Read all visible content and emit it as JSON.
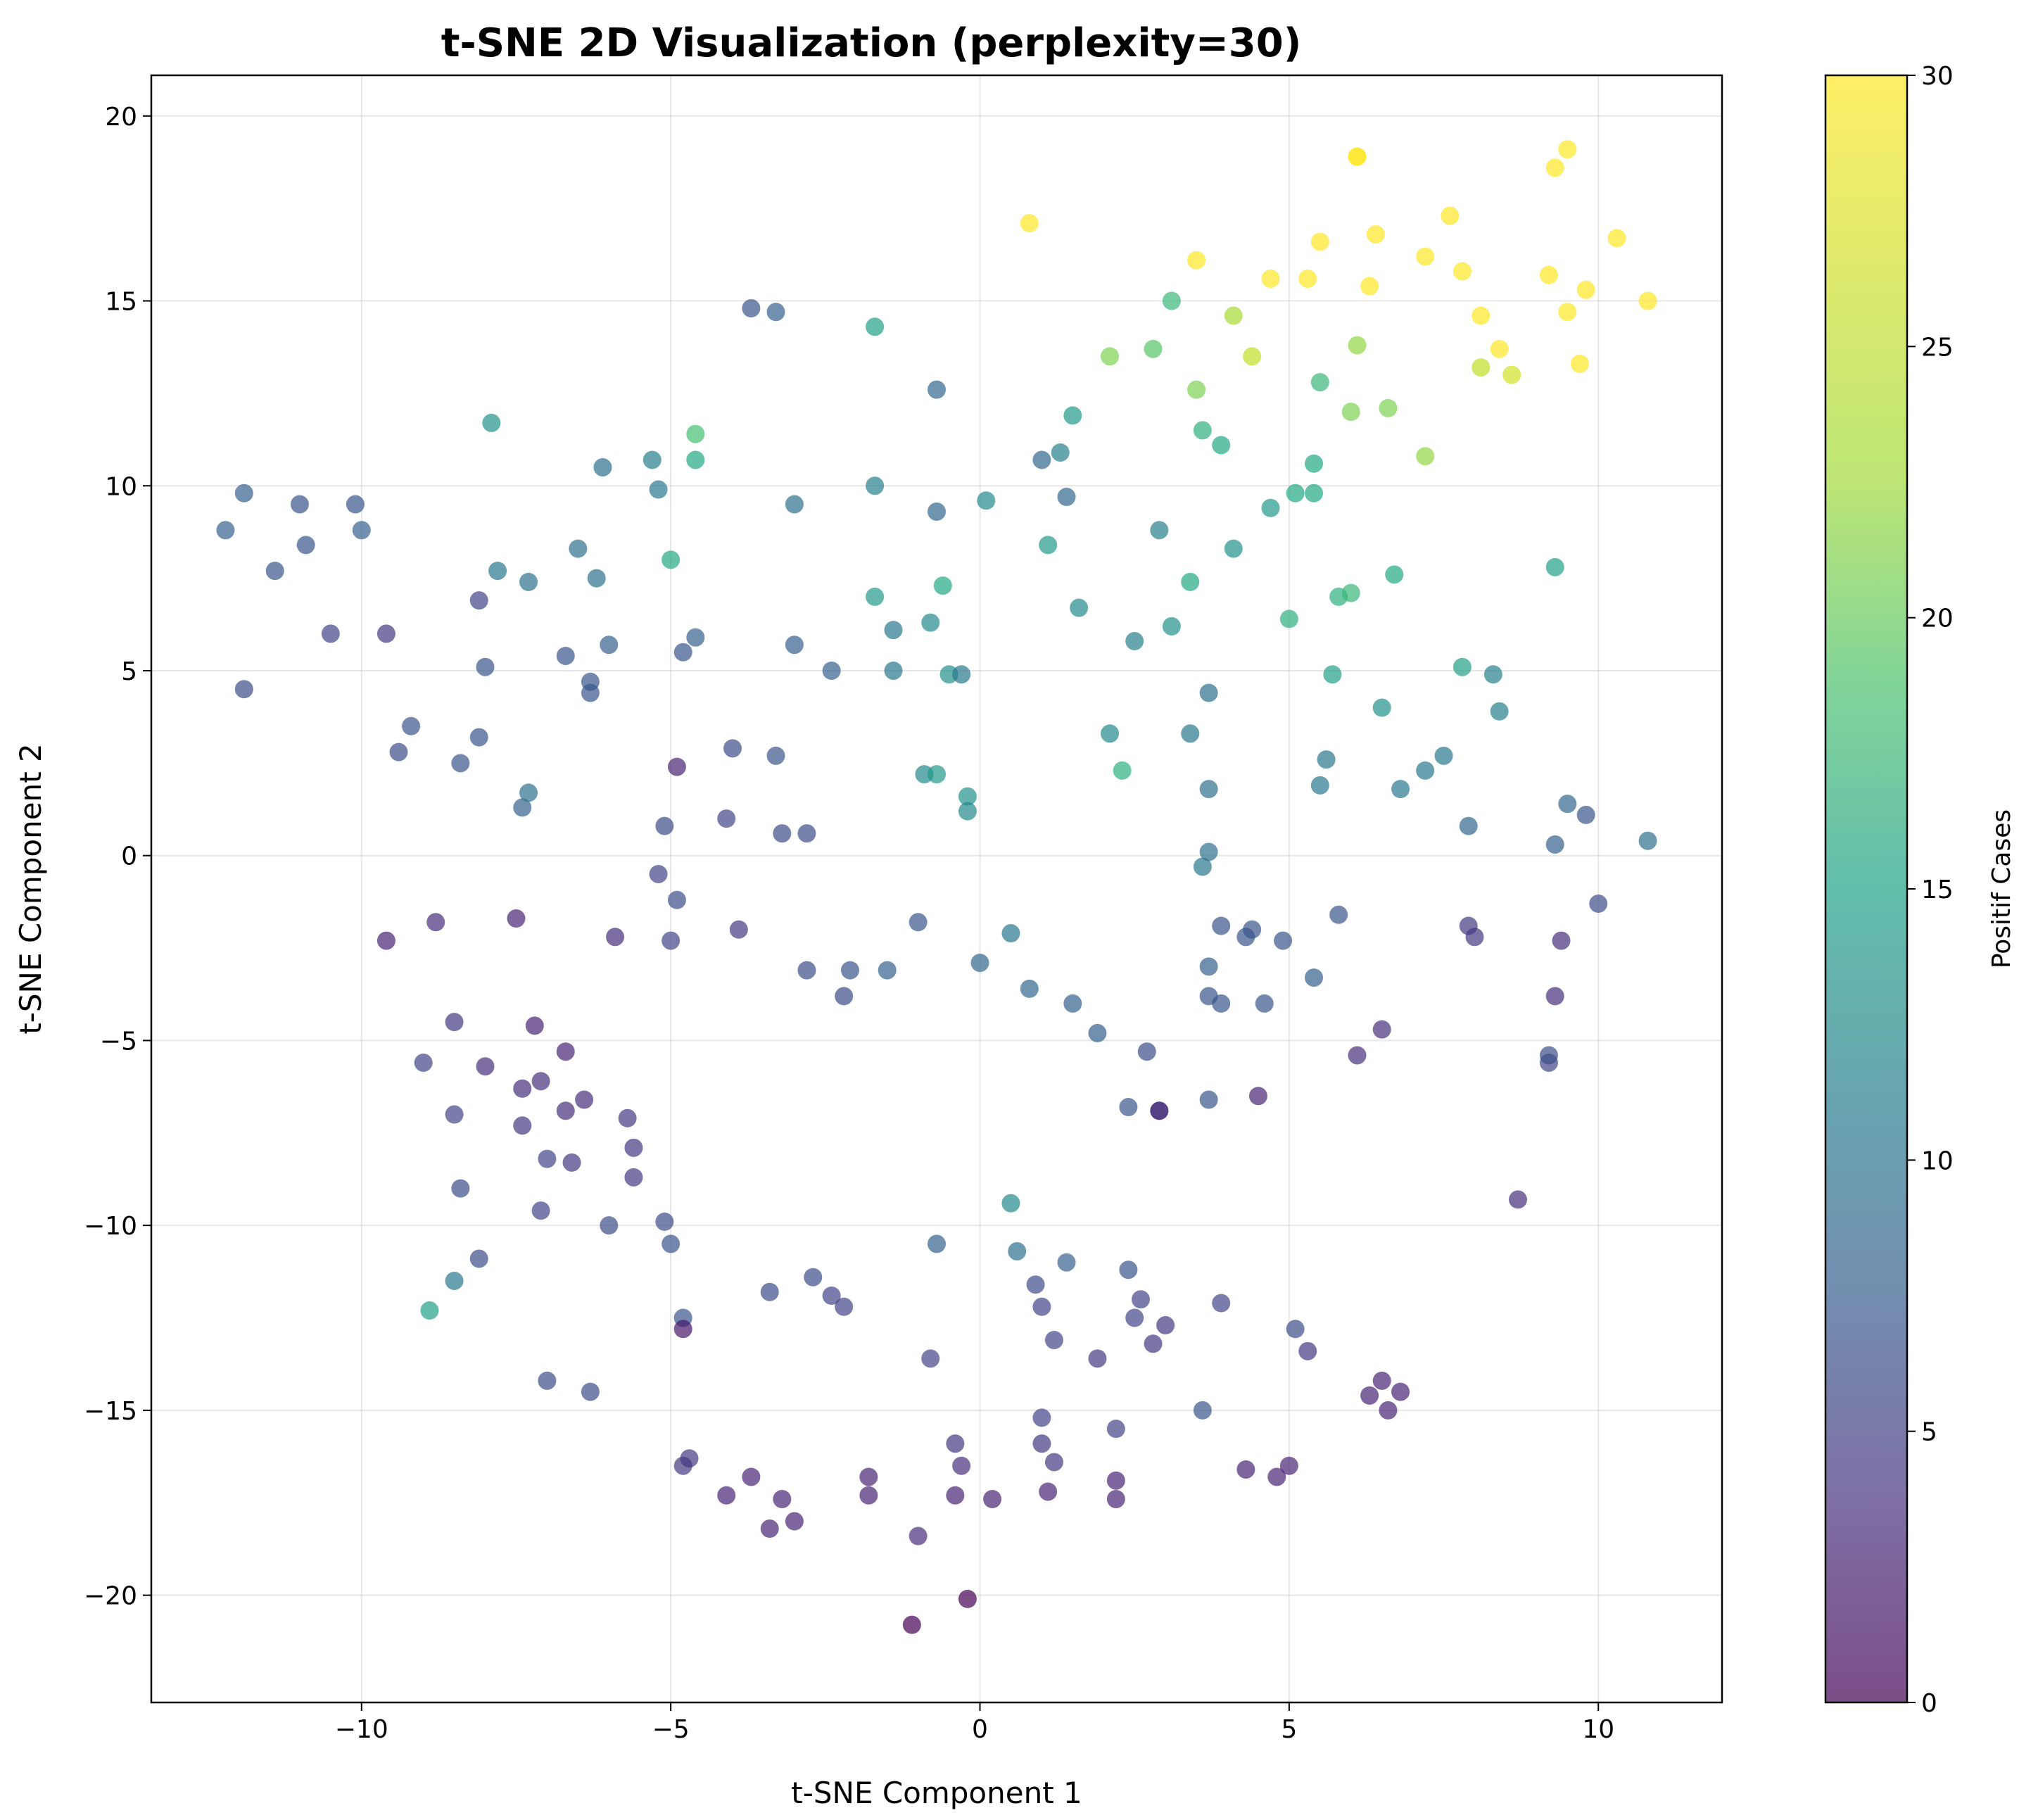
{
  "chart_data": {
    "type": "scatter",
    "title": "t-SNE 2D Visualization (perplexity=30)",
    "xlabel": "t-SNE Component 1",
    "ylabel": "t-SNE Component 2",
    "xlim": [
      -13.4,
      12.0
    ],
    "ylim": [
      -22.9,
      21.1
    ],
    "xticks": [
      -10,
      -5,
      0,
      5,
      10
    ],
    "yticks": [
      -20,
      -15,
      -10,
      -5,
      0,
      5,
      10,
      15,
      20
    ],
    "grid": true,
    "colormap": "viridis",
    "marker_alpha": 0.7,
    "colorbar": {
      "label": "Positif Cases",
      "range": [
        0,
        30
      ],
      "ticks": [
        0,
        5,
        10,
        15,
        20,
        25,
        30
      ]
    },
    "points": [
      [
        -12.2,
        8.8,
        9
      ],
      [
        -11.9,
        9.8,
        9
      ],
      [
        -11.9,
        4.5,
        7
      ],
      [
        -11.4,
        7.7,
        8
      ],
      [
        -11.0,
        9.5,
        8
      ],
      [
        -10.9,
        8.4,
        8
      ],
      [
        -10.5,
        6.0,
        6
      ],
      [
        -10.1,
        9.5,
        8
      ],
      [
        -10.0,
        8.8,
        9
      ],
      [
        -9.6,
        6.0,
        5
      ],
      [
        -9.6,
        -2.3,
        3
      ],
      [
        -9.4,
        2.8,
        7
      ],
      [
        -9.2,
        3.5,
        8
      ],
      [
        -9.0,
        -5.6,
        6
      ],
      [
        -8.8,
        -1.8,
        4
      ],
      [
        -8.5,
        -7.0,
        6
      ],
      [
        -8.5,
        -4.5,
        5
      ],
      [
        -8.4,
        2.5,
        8
      ],
      [
        -8.4,
        -9.0,
        7
      ],
      [
        -8.5,
        -11.5,
        12
      ],
      [
        -8.9,
        -12.3,
        17
      ],
      [
        -8.1,
        -10.9,
        7
      ],
      [
        -8.1,
        6.9,
        6
      ],
      [
        -8.1,
        3.2,
        8
      ],
      [
        -8.0,
        5.1,
        8
      ],
      [
        -8.0,
        -5.7,
        4
      ],
      [
        -7.9,
        11.7,
        15
      ],
      [
        -7.8,
        7.7,
        12
      ],
      [
        -7.5,
        -1.7,
        3
      ],
      [
        -7.4,
        -6.3,
        4
      ],
      [
        -7.4,
        -7.3,
        5
      ],
      [
        -7.4,
        1.3,
        9
      ],
      [
        -7.3,
        1.7,
        11
      ],
      [
        -7.3,
        7.4,
        11
      ],
      [
        -7.2,
        -4.6,
        3
      ],
      [
        -7.1,
        -6.1,
        4
      ],
      [
        -7.1,
        -9.6,
        6
      ],
      [
        -7.0,
        -8.2,
        6
      ],
      [
        -7.0,
        -14.2,
        7
      ],
      [
        -6.7,
        -6.9,
        4
      ],
      [
        -6.7,
        -5.3,
        3
      ],
      [
        -6.7,
        5.4,
        8
      ],
      [
        -6.6,
        -8.3,
        5
      ],
      [
        -6.5,
        8.3,
        11
      ],
      [
        -6.4,
        -6.6,
        4
      ],
      [
        -6.3,
        4.7,
        8
      ],
      [
        -6.3,
        4.4,
        8
      ],
      [
        -6.2,
        7.5,
        11
      ],
      [
        -6.3,
        -14.5,
        7
      ],
      [
        -6.1,
        10.5,
        11
      ],
      [
        -6.0,
        5.7,
        9
      ],
      [
        -6.0,
        -10.0,
        7
      ],
      [
        -5.9,
        -2.2,
        4
      ],
      [
        -5.7,
        -7.1,
        5
      ],
      [
        -5.6,
        -7.9,
        5
      ],
      [
        -5.6,
        -8.7,
        5
      ],
      [
        -5.3,
        10.7,
        13
      ],
      [
        -5.2,
        -0.5,
        6
      ],
      [
        -5.2,
        9.9,
        12
      ],
      [
        -5.1,
        -9.9,
        7
      ],
      [
        -5.1,
        0.8,
        7
      ],
      [
        -5.0,
        -10.5,
        8
      ],
      [
        -5.0,
        8.0,
        18
      ],
      [
        -5.0,
        -2.3,
        6
      ],
      [
        -4.9,
        2.4,
        3
      ],
      [
        -4.9,
        -1.2,
        7
      ],
      [
        -4.8,
        -12.5,
        8
      ],
      [
        -4.8,
        -12.8,
        2
      ],
      [
        -4.8,
        -16.5,
        5
      ],
      [
        -4.8,
        5.5,
        8
      ],
      [
        -4.7,
        -16.3,
        5
      ],
      [
        -4.6,
        5.9,
        9
      ],
      [
        -4.6,
        11.4,
        21
      ],
      [
        -4.6,
        10.7,
        18
      ],
      [
        -4.1,
        1.0,
        6
      ],
      [
        -4.1,
        -17.3,
        3
      ],
      [
        -4.0,
        2.9,
        7
      ],
      [
        -3.9,
        -2.0,
        5
      ],
      [
        -3.7,
        14.8,
        8
      ],
      [
        -3.7,
        -16.8,
        3
      ],
      [
        -3.4,
        -11.8,
        7
      ],
      [
        -3.4,
        -18.2,
        3
      ],
      [
        -3.3,
        14.7,
        9
      ],
      [
        -3.3,
        2.7,
        8
      ],
      [
        -3.2,
        0.6,
        7
      ],
      [
        -3.2,
        -17.4,
        3
      ],
      [
        -3.0,
        9.5,
        11
      ],
      [
        -3.0,
        5.7,
        9
      ],
      [
        -3.0,
        -18.0,
        3
      ],
      [
        -2.8,
        0.6,
        7
      ],
      [
        -2.8,
        -3.1,
        7
      ],
      [
        -2.7,
        -11.4,
        7
      ],
      [
        -2.4,
        -11.9,
        6
      ],
      [
        -2.4,
        5.0,
        9
      ],
      [
        -2.2,
        -3.8,
        7
      ],
      [
        -2.2,
        -12.2,
        6
      ],
      [
        -2.1,
        -3.1,
        8
      ],
      [
        -1.8,
        -16.8,
        3
      ],
      [
        -1.8,
        -17.3,
        3
      ],
      [
        -1.7,
        14.3,
        17
      ],
      [
        -1.7,
        7.0,
        16
      ],
      [
        -1.7,
        10.0,
        13
      ],
      [
        -1.5,
        -3.1,
        9
      ],
      [
        -1.4,
        6.1,
        12
      ],
      [
        -1.4,
        5.0,
        12
      ],
      [
        -1.1,
        -20.8,
        0
      ],
      [
        -1.0,
        -18.4,
        4
      ],
      [
        -1.0,
        -1.8,
        8
      ],
      [
        -0.9,
        2.2,
        14
      ],
      [
        -0.8,
        6.3,
        14
      ],
      [
        -0.8,
        -13.6,
        6
      ],
      [
        -0.7,
        9.3,
        10
      ],
      [
        -0.7,
        12.6,
        10
      ],
      [
        -0.7,
        -10.5,
        9
      ],
      [
        -0.7,
        2.2,
        16
      ],
      [
        -0.6,
        7.3,
        18
      ],
      [
        -0.5,
        4.9,
        15
      ],
      [
        -0.4,
        -17.3,
        3
      ],
      [
        -0.4,
        -15.9,
        5
      ],
      [
        -0.3,
        4.9,
        12
      ],
      [
        -0.3,
        -16.5,
        4
      ],
      [
        -0.2,
        -20.1,
        0
      ],
      [
        -0.2,
        1.6,
        15
      ],
      [
        -0.2,
        1.2,
        14
      ],
      [
        0.0,
        -2.9,
        10
      ],
      [
        0.1,
        9.6,
        14
      ],
      [
        0.2,
        -17.4,
        3
      ],
      [
        0.5,
        -9.4,
        14
      ],
      [
        0.5,
        -2.1,
        12
      ],
      [
        0.6,
        -10.7,
        11
      ],
      [
        0.8,
        17.1,
        30
      ],
      [
        0.8,
        -3.6,
        10
      ],
      [
        0.9,
        -11.6,
        7
      ],
      [
        1.0,
        10.7,
        10
      ],
      [
        1.0,
        -12.2,
        6
      ],
      [
        1.0,
        -15.2,
        6
      ],
      [
        1.0,
        -15.9,
        5
      ],
      [
        1.1,
        8.4,
        16
      ],
      [
        1.1,
        -17.2,
        3
      ],
      [
        1.2,
        -16.4,
        5
      ],
      [
        1.2,
        -13.1,
        6
      ],
      [
        1.3,
        10.9,
        13
      ],
      [
        1.4,
        9.7,
        10
      ],
      [
        1.4,
        -11.0,
        9
      ],
      [
        1.5,
        11.9,
        16
      ],
      [
        1.5,
        -4.0,
        9
      ],
      [
        1.6,
        6.7,
        14
      ],
      [
        1.9,
        -4.8,
        9
      ],
      [
        1.9,
        -13.6,
        5
      ],
      [
        2.1,
        13.5,
        24
      ],
      [
        2.1,
        3.3,
        14
      ],
      [
        2.2,
        -17.4,
        3
      ],
      [
        2.2,
        -16.9,
        3
      ],
      [
        2.2,
        -15.5,
        6
      ],
      [
        2.3,
        2.3,
        19
      ],
      [
        2.4,
        -11.2,
        8
      ],
      [
        2.4,
        -6.8,
        8
      ],
      [
        2.5,
        -12.5,
        6
      ],
      [
        2.5,
        5.8,
        13
      ],
      [
        2.6,
        -12.0,
        6
      ],
      [
        2.7,
        -5.3,
        7
      ],
      [
        2.8,
        13.7,
        22
      ],
      [
        2.8,
        -13.2,
        5
      ],
      [
        2.9,
        8.8,
        13
      ],
      [
        2.9,
        -6.9,
        4
      ],
      [
        2.9,
        -6.9,
        4
      ],
      [
        3.0,
        -12.7,
        5
      ],
      [
        3.1,
        6.2,
        15
      ],
      [
        3.1,
        15.0,
        20
      ],
      [
        3.4,
        7.4,
        18
      ],
      [
        3.4,
        3.3,
        12
      ],
      [
        3.5,
        16.1,
        30
      ],
      [
        3.5,
        12.6,
        24
      ],
      [
        3.6,
        -0.3,
        12
      ],
      [
        3.6,
        11.5,
        19
      ],
      [
        3.6,
        -15.0,
        8
      ],
      [
        3.7,
        -3.8,
        8
      ],
      [
        3.7,
        0.1,
        11
      ],
      [
        3.7,
        1.8,
        11
      ],
      [
        3.7,
        4.4,
        11
      ],
      [
        3.7,
        -3.0,
        9
      ],
      [
        3.7,
        -6.6,
        8
      ],
      [
        3.9,
        11.1,
        18
      ],
      [
        3.9,
        -1.9,
        8
      ],
      [
        3.9,
        -12.1,
        6
      ],
      [
        3.9,
        -4.0,
        8
      ],
      [
        4.1,
        8.3,
        15
      ],
      [
        4.1,
        14.6,
        26
      ],
      [
        4.3,
        -16.6,
        3
      ],
      [
        4.3,
        -2.2,
        8
      ],
      [
        4.4,
        13.5,
        27
      ],
      [
        4.4,
        -2.0,
        8
      ],
      [
        4.5,
        -6.5,
        3
      ],
      [
        4.6,
        -4.0,
        8
      ],
      [
        4.7,
        15.6,
        30
      ],
      [
        4.7,
        9.4,
        16
      ],
      [
        4.8,
        -16.8,
        3
      ],
      [
        4.9,
        -2.3,
        8
      ],
      [
        5.0,
        -16.5,
        3
      ],
      [
        5.0,
        6.4,
        19
      ],
      [
        5.1,
        -12.8,
        7
      ],
      [
        5.1,
        9.8,
        18
      ],
      [
        5.3,
        -13.4,
        5
      ],
      [
        5.3,
        15.6,
        30
      ],
      [
        5.4,
        -3.3,
        9
      ],
      [
        5.4,
        9.8,
        18
      ],
      [
        5.4,
        10.6,
        18
      ],
      [
        5.5,
        16.6,
        30
      ],
      [
        5.5,
        12.8,
        20
      ],
      [
        5.5,
        1.9,
        12
      ],
      [
        5.6,
        2.6,
        12
      ],
      [
        5.7,
        4.9,
        17
      ],
      [
        5.8,
        -1.6,
        8
      ],
      [
        5.8,
        7.0,
        19
      ],
      [
        6.0,
        12.0,
        24
      ],
      [
        6.0,
        7.1,
        20
      ],
      [
        6.1,
        18.9,
        30
      ],
      [
        6.1,
        18.9,
        30
      ],
      [
        6.1,
        13.8,
        25
      ],
      [
        6.1,
        -5.4,
        4
      ],
      [
        6.3,
        15.4,
        30
      ],
      [
        6.3,
        -14.6,
        3
      ],
      [
        6.4,
        16.8,
        30
      ],
      [
        6.5,
        4.0,
        15
      ],
      [
        6.5,
        -4.7,
        4
      ],
      [
        6.5,
        -14.2,
        3
      ],
      [
        6.6,
        12.1,
        24
      ],
      [
        6.6,
        -15.0,
        3
      ],
      [
        6.7,
        7.6,
        18
      ],
      [
        6.8,
        1.8,
        12
      ],
      [
        6.8,
        -14.5,
        3
      ],
      [
        7.2,
        16.2,
        30
      ],
      [
        7.2,
        2.3,
        12
      ],
      [
        7.2,
        10.8,
        25
      ],
      [
        7.5,
        2.7,
        12
      ],
      [
        7.6,
        17.3,
        30
      ],
      [
        7.8,
        15.8,
        30
      ],
      [
        7.8,
        5.1,
        17
      ],
      [
        7.9,
        0.8,
        10
      ],
      [
        7.9,
        -1.9,
        5
      ],
      [
        8.0,
        -2.2,
        5
      ],
      [
        8.1,
        13.2,
        27
      ],
      [
        8.1,
        14.6,
        30
      ],
      [
        8.3,
        4.9,
        13
      ],
      [
        8.4,
        3.9,
        13
      ],
      [
        8.4,
        13.7,
        30
      ],
      [
        8.6,
        13.0,
        28
      ],
      [
        8.7,
        -9.3,
        4
      ],
      [
        9.2,
        15.7,
        30
      ],
      [
        9.2,
        -5.6,
        6
      ],
      [
        9.2,
        -5.4,
        7
      ],
      [
        9.3,
        18.6,
        30
      ],
      [
        9.3,
        7.8,
        17
      ],
      [
        9.3,
        -3.8,
        4
      ],
      [
        9.3,
        0.3,
        9
      ],
      [
        9.4,
        -2.3,
        4
      ],
      [
        9.5,
        19.1,
        30
      ],
      [
        9.5,
        14.7,
        30
      ],
      [
        9.5,
        1.4,
        10
      ],
      [
        9.7,
        13.3,
        30
      ],
      [
        9.8,
        15.3,
        30
      ],
      [
        9.8,
        1.1,
        8
      ],
      [
        10.0,
        -1.3,
        7
      ],
      [
        10.3,
        16.7,
        30
      ],
      [
        10.8,
        15.0,
        30
      ],
      [
        10.8,
        0.4,
        11
      ]
    ]
  }
}
